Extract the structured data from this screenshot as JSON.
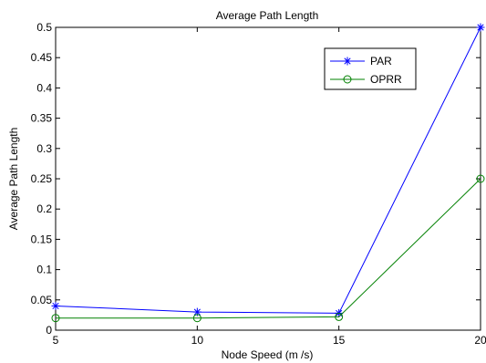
{
  "chart_data": {
    "type": "line",
    "title": "Average Path Length",
    "xlabel": "Node Speed (m /s)",
    "ylabel": "Average Path Length",
    "x": [
      5,
      10,
      15,
      20
    ],
    "xlim": [
      5,
      20
    ],
    "ylim": [
      0,
      0.5
    ],
    "xticks": [
      5,
      10,
      15,
      20
    ],
    "yticks": [
      0,
      0.05,
      0.1,
      0.15,
      0.2,
      0.25,
      0.3,
      0.35,
      0.4,
      0.45,
      0.5
    ],
    "ytick_labels": [
      "0",
      "0.05",
      "0.1",
      "0.15",
      "0.2",
      "0.25",
      "0.3",
      "0.35",
      "0.4",
      "0.45",
      "0.5"
    ],
    "grid": false,
    "legend_position": "top-right",
    "series": [
      {
        "name": "PAR",
        "values": [
          0.04,
          0.03,
          0.028,
          0.5
        ],
        "color": "#0000ff",
        "marker": "star"
      },
      {
        "name": "OPRR",
        "values": [
          0.02,
          0.02,
          0.022,
          0.25
        ],
        "color": "#008000",
        "marker": "circle"
      }
    ]
  }
}
